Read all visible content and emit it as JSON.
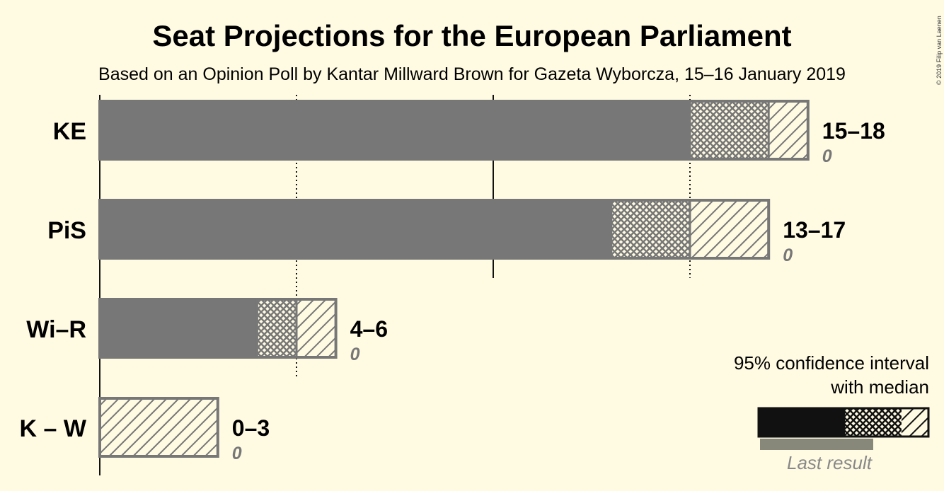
{
  "title": "Seat Projections for the European Parliament",
  "subtitle": "Based on an Opinion Poll by Kantar Millward Brown for Gazeta Wyborcza, 15–16 January 2019",
  "copyright": "© 2019 Filip van Laenen",
  "legend": {
    "line1": "95% confidence interval",
    "line2": "with median",
    "last_result": "Last result"
  },
  "colors": {
    "background": "#fffbe3",
    "bar": "#777777",
    "legend_bar": "#111111",
    "last_result_bar": "#88887a",
    "text": "#111111",
    "last_text": "#777777"
  },
  "chart_data": {
    "type": "bar",
    "orientation": "horizontal",
    "x_min": 0,
    "x_max": 18,
    "solid_gridlines": [
      0,
      10
    ],
    "dotted_gridlines": [
      5,
      15
    ],
    "parties": [
      {
        "name": "KE",
        "low": 15,
        "median": 17,
        "high": 18,
        "range_label": "15–18",
        "last_label": "0"
      },
      {
        "name": "PiS",
        "low": 13,
        "median": 15,
        "high": 17,
        "range_label": "13–17",
        "last_label": "0"
      },
      {
        "name": "Wi–R",
        "low": 4,
        "median": 5,
        "high": 6,
        "range_label": "4–6",
        "last_label": "0"
      },
      {
        "name": "K – W",
        "low": 0,
        "median": 0,
        "high": 3,
        "range_label": "0–3",
        "last_label": "0"
      }
    ]
  }
}
